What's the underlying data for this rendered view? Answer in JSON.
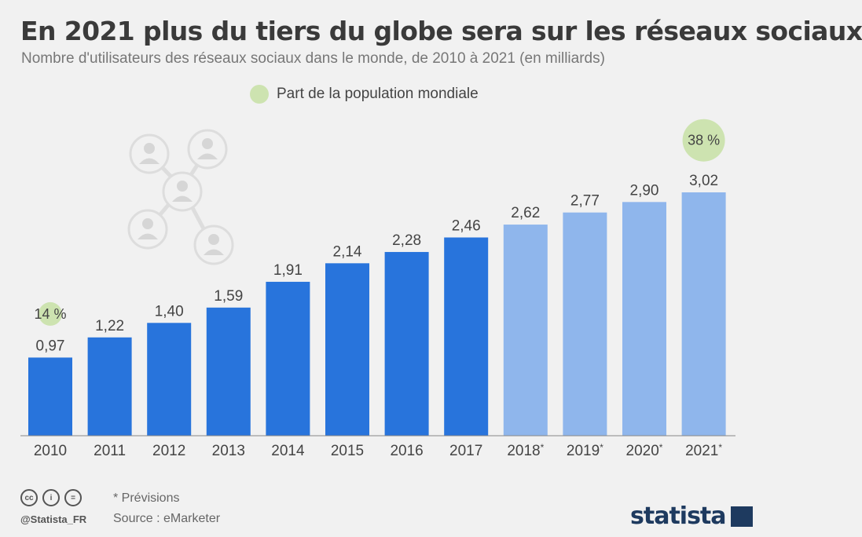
{
  "header": {
    "title": "En 2021 plus du tiers du globe sera sur les réseaux sociaux",
    "subtitle": "Nombre d'utilisateurs des réseaux sociaux dans le monde, de 2010 à 2021 (en milliards)"
  },
  "legend": {
    "label": "Part de la population mondiale",
    "color": "#cde3b0"
  },
  "colors": {
    "actual": "#2874dc",
    "forecast": "#8fb6ec",
    "share_bubble": "#cde3b0",
    "axis": "#888888",
    "text": "#444444"
  },
  "chart_data": {
    "type": "bar",
    "categories": [
      "2010",
      "2011",
      "2012",
      "2013",
      "2014",
      "2015",
      "2016",
      "2017",
      "2018*",
      "2019*",
      "2020*",
      "2021*"
    ],
    "values": [
      0.97,
      1.22,
      1.4,
      1.59,
      1.91,
      2.14,
      2.28,
      2.46,
      2.62,
      2.77,
      2.9,
      3.02
    ],
    "value_labels": [
      "0,97",
      "1,22",
      "1,40",
      "1,59",
      "1,91",
      "2,14",
      "2,28",
      "2,46",
      "2,62",
      "2,77",
      "2,90",
      "3,02"
    ],
    "forecast": [
      false,
      false,
      false,
      false,
      false,
      false,
      false,
      false,
      true,
      true,
      true,
      true
    ],
    "population_share": [
      {
        "category": "2010",
        "label": "14 %",
        "value": 14
      },
      {
        "category": "2021*",
        "label": "38 %",
        "value": 38
      }
    ],
    "ylim": [
      0,
      3.02
    ],
    "xlabel": "",
    "ylabel": "",
    "grid": false,
    "legend_position": "top-center"
  },
  "footer": {
    "icons": [
      "cc-icon",
      "by-icon",
      "nd-icon"
    ],
    "icon_glyphs": [
      "cc",
      "i",
      "="
    ],
    "handle": "@Statista_FR",
    "note": "* Prévisions",
    "source": "Source : eMarketer",
    "logo": "statista"
  }
}
